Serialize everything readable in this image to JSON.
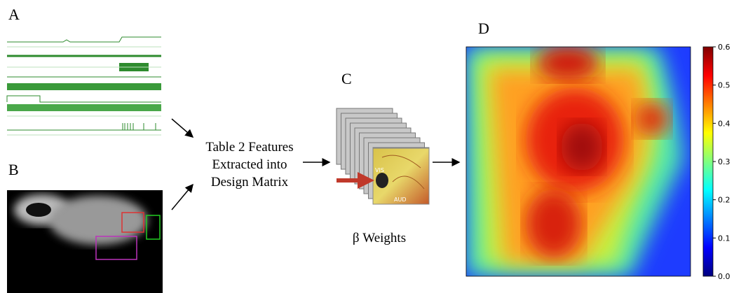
{
  "panels": {
    "a": "A",
    "b": "B",
    "c": "C",
    "d": "D"
  },
  "pipeline": {
    "features_lines": [
      "Table 2 Features",
      "Extracted into",
      "Design Matrix"
    ],
    "weights_label": "β Weights"
  },
  "brain_image": {
    "labels": [
      "VIS",
      "AUD"
    ]
  },
  "colorbar": {
    "lim": [
      0,
      0.6
    ],
    "ticks": [
      {
        "value": 0,
        "label": "0.0"
      },
      0.1,
      0.2,
      0.3,
      0.4,
      0.5,
      0.6
    ]
  }
}
